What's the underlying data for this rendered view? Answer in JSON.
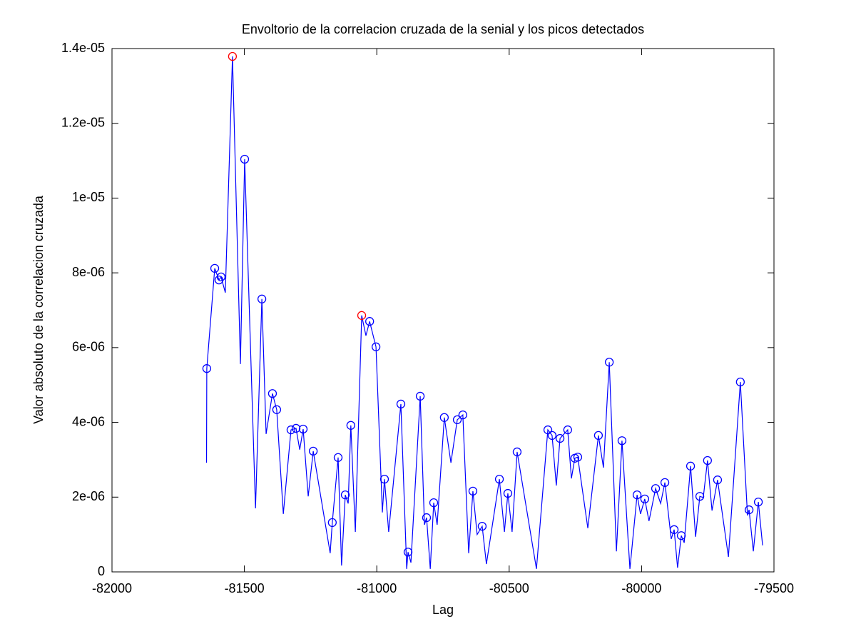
{
  "chart_data": {
    "type": "line",
    "title": "Envoltorio de la correlacion cruzada de la senial y los picos detectados",
    "xlabel": "Lag",
    "ylabel": "Valor absoluto de la correlacion cruzada",
    "xlim": [
      -82000,
      -79500
    ],
    "xticks": [
      -82000,
      -81500,
      -81000,
      -80500,
      -80000,
      -79500
    ],
    "ylim": [
      0,
      1.4e-05
    ],
    "yticks": [
      0,
      {
        "value": 2e-06,
        "label": "2e-06"
      },
      {
        "value": 4e-06,
        "label": "4e-06"
      },
      {
        "value": 6e-06,
        "label": "6e-06"
      },
      {
        "value": 8e-06,
        "label": "8e-06"
      },
      {
        "value": 1e-05,
        "label": "1e-05"
      },
      {
        "value": 1.2e-05,
        "label": "1.2e-05"
      },
      {
        "value": 1.4e-05,
        "label": "1.4e-05"
      }
    ],
    "grid": false,
    "series": [
      {
        "type": "line",
        "color": "#0000ff",
        "x": [
          -81643,
          -81642,
          -81612,
          -81596,
          -81588,
          -81572,
          -81545,
          -81515,
          -81499,
          -81458,
          -81434,
          -81418,
          -81394,
          -81378,
          -81353,
          -81324,
          -81305,
          -81291,
          -81278,
          -81259,
          -81240,
          -81176,
          -81168,
          -81146,
          -81133,
          -81119,
          -81108,
          -81098,
          -81081,
          -81057,
          -81041,
          -81027,
          -81003,
          -80979,
          -80971,
          -80955,
          -80909,
          -80887,
          -80882,
          -80871,
          -80836,
          -80820,
          -80812,
          -80798,
          -80785,
          -80772,
          -80745,
          -80720,
          -80696,
          -80675,
          -80653,
          -80637,
          -80621,
          -80602,
          -80586,
          -80537,
          -80518,
          -80505,
          -80489,
          -80470,
          -80397,
          -80354,
          -80338,
          -80322,
          -80308,
          -80279,
          -80265,
          -80252,
          -80241,
          -80203,
          -80163,
          -80144,
          -80122,
          -80095,
          -80074,
          -80044,
          -80017,
          -80004,
          -79988,
          -79972,
          -79947,
          -79928,
          -79912,
          -79888,
          -79877,
          -79864,
          -79850,
          -79839,
          -79815,
          -79796,
          -79780,
          -79767,
          -79751,
          -79734,
          -79713,
          -79672,
          -79627,
          -79600,
          -79594,
          -79578,
          -79559,
          -79543
        ],
        "values": [
          2.92e-06,
          5.44e-06,
          8.12e-06,
          7.81e-06,
          7.89e-06,
          7.47e-06,
          1.379e-05,
          5.56e-06,
          1.104e-05,
          1.7e-06,
          7.3e-06,
          3.69e-06,
          4.77e-06,
          4.34e-06,
          1.55e-06,
          3.8e-06,
          3.84e-06,
          3.27e-06,
          3.82e-06,
          2.02e-06,
          3.23e-06,
          5e-07,
          1.32e-06,
          3.06e-06,
          1.7e-07,
          2.06e-06,
          1.83e-06,
          3.92e-06,
          1.07e-06,
          6.86e-06,
          6.32e-06,
          6.7e-06,
          6.02e-06,
          1.59e-06,
          2.48e-06,
          1.07e-06,
          4.49e-06,
          8e-08,
          5.3e-07,
          2.5e-07,
          4.7e-06,
          1.26e-06,
          1.45e-06,
          8e-08,
          1.85e-06,
          1.26e-06,
          4.13e-06,
          2.92e-06,
          4.07e-06,
          4.2e-06,
          5e-07,
          2.16e-06,
          1e-06,
          1.22e-06,
          2.1e-07,
          2.48e-06,
          1.07e-06,
          2.1e-06,
          1.07e-06,
          3.21e-06,
          8e-08,
          3.8e-06,
          3.65e-06,
          2.31e-06,
          3.57e-06,
          3.8e-06,
          2.5e-06,
          3.04e-06,
          3.07e-06,
          1.17e-06,
          3.65e-06,
          2.79e-06,
          5.61e-06,
          5.5e-07,
          3.51e-06,
          8e-08,
          2.06e-06,
          1.55e-06,
          1.95e-06,
          1.36e-06,
          2.23e-06,
          1.83e-06,
          2.39e-06,
          8.8e-07,
          1.13e-06,
          1.1e-07,
          9.7e-07,
          7.8e-07,
          2.83e-06,
          9.4e-07,
          2.02e-06,
          1.99e-06,
          2.98e-06,
          1.64e-06,
          2.46e-06,
          4e-07,
          5.08e-06,
          1.51e-06,
          1.66e-06,
          5.5e-07,
          1.87e-06,
          7.1e-07
        ]
      },
      {
        "type": "scatter",
        "color": "#0000ff",
        "x": [
          -81642,
          -81612,
          -81596,
          -81588,
          -81499,
          -81434,
          -81394,
          -81378,
          -81324,
          -81305,
          -81278,
          -81240,
          -81168,
          -81146,
          -81119,
          -81098,
          -81027,
          -81003,
          -80971,
          -80909,
          -80882,
          -80836,
          -80812,
          -80785,
          -80745,
          -80696,
          -80675,
          -80637,
          -80602,
          -80537,
          -80505,
          -80470,
          -80354,
          -80338,
          -80308,
          -80279,
          -80252,
          -80241,
          -80163,
          -80122,
          -80074,
          -80017,
          -79988,
          -79947,
          -79912,
          -79877,
          -79850,
          -79815,
          -79780,
          -79751,
          -79713,
          -79627,
          -79594,
          -79559
        ],
        "values": [
          5.44e-06,
          8.12e-06,
          7.81e-06,
          7.89e-06,
          1.104e-05,
          7.3e-06,
          4.77e-06,
          4.34e-06,
          3.8e-06,
          3.84e-06,
          3.82e-06,
          3.23e-06,
          1.32e-06,
          3.06e-06,
          2.06e-06,
          3.92e-06,
          6.7e-06,
          6.02e-06,
          2.48e-06,
          4.49e-06,
          5.3e-07,
          4.7e-06,
          1.45e-06,
          1.85e-06,
          4.13e-06,
          4.07e-06,
          4.2e-06,
          2.16e-06,
          1.22e-06,
          2.48e-06,
          2.1e-06,
          3.21e-06,
          3.8e-06,
          3.65e-06,
          3.57e-06,
          3.8e-06,
          3.04e-06,
          3.07e-06,
          3.65e-06,
          5.61e-06,
          3.51e-06,
          2.06e-06,
          1.95e-06,
          2.23e-06,
          2.39e-06,
          1.13e-06,
          9.7e-07,
          2.83e-06,
          2.02e-06,
          2.98e-06,
          2.46e-06,
          5.08e-06,
          1.66e-06,
          1.87e-06
        ]
      },
      {
        "type": "scatter",
        "color": "#ff0000",
        "x": [
          -81545,
          -81057
        ],
        "values": [
          1.379e-05,
          6.86e-06
        ]
      }
    ]
  }
}
